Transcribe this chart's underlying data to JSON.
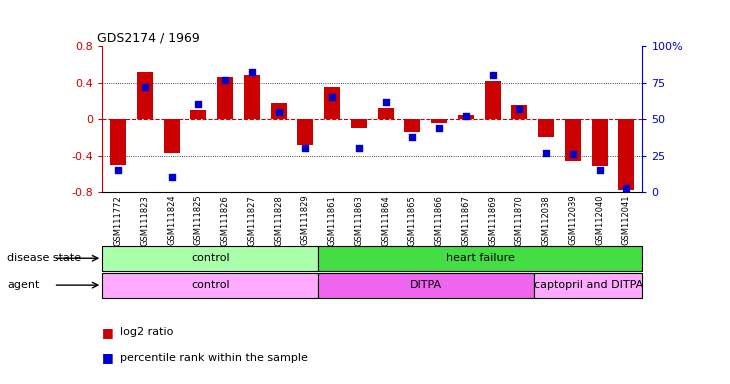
{
  "title": "GDS2174 / 1969",
  "samples": [
    "GSM111772",
    "GSM111823",
    "GSM111824",
    "GSM111825",
    "GSM111826",
    "GSM111827",
    "GSM111828",
    "GSM111829",
    "GSM111861",
    "GSM111863",
    "GSM111864",
    "GSM111865",
    "GSM111866",
    "GSM111867",
    "GSM111869",
    "GSM111870",
    "GSM112038",
    "GSM112039",
    "GSM112040",
    "GSM112041"
  ],
  "log2_ratio": [
    -0.5,
    0.52,
    -0.37,
    0.1,
    0.46,
    0.48,
    0.18,
    -0.28,
    0.35,
    -0.1,
    0.12,
    -0.14,
    -0.04,
    0.04,
    0.42,
    0.15,
    -0.2,
    -0.46,
    -0.52,
    -0.78
  ],
  "percentile_rank": [
    15,
    72,
    10,
    60,
    77,
    82,
    55,
    30,
    65,
    30,
    62,
    38,
    44,
    52,
    80,
    57,
    27,
    26,
    15,
    3
  ],
  "disease_state_groups": [
    {
      "label": "control",
      "start": 0,
      "end": 7,
      "color": "#aaffaa"
    },
    {
      "label": "heart failure",
      "start": 8,
      "end": 19,
      "color": "#44dd44"
    }
  ],
  "agent_groups": [
    {
      "label": "control",
      "start": 0,
      "end": 7,
      "color": "#ffaaff"
    },
    {
      "label": "DITPA",
      "start": 8,
      "end": 15,
      "color": "#ee66ee"
    },
    {
      "label": "captopril and DITPA",
      "start": 16,
      "end": 19,
      "color": "#ffaaff"
    }
  ],
  "bar_color": "#cc0000",
  "dot_color": "#0000cc",
  "ylim_left": [
    -0.8,
    0.8
  ],
  "ylim_right": [
    0,
    100
  ],
  "yticks_left": [
    -0.8,
    -0.4,
    0.0,
    0.4,
    0.8
  ],
  "yticks_right": [
    0,
    25,
    50,
    75,
    100
  ],
  "hline_color": "#cc0000",
  "grid_color": "black",
  "bg_color": "white",
  "label_color_left": "#cc0000",
  "label_color_right": "#0000cc",
  "legend_bar_label": "log2 ratio",
  "legend_dot_label": "percentile rank within the sample",
  "disease_state_row_label": "disease state",
  "agent_row_label": "agent"
}
